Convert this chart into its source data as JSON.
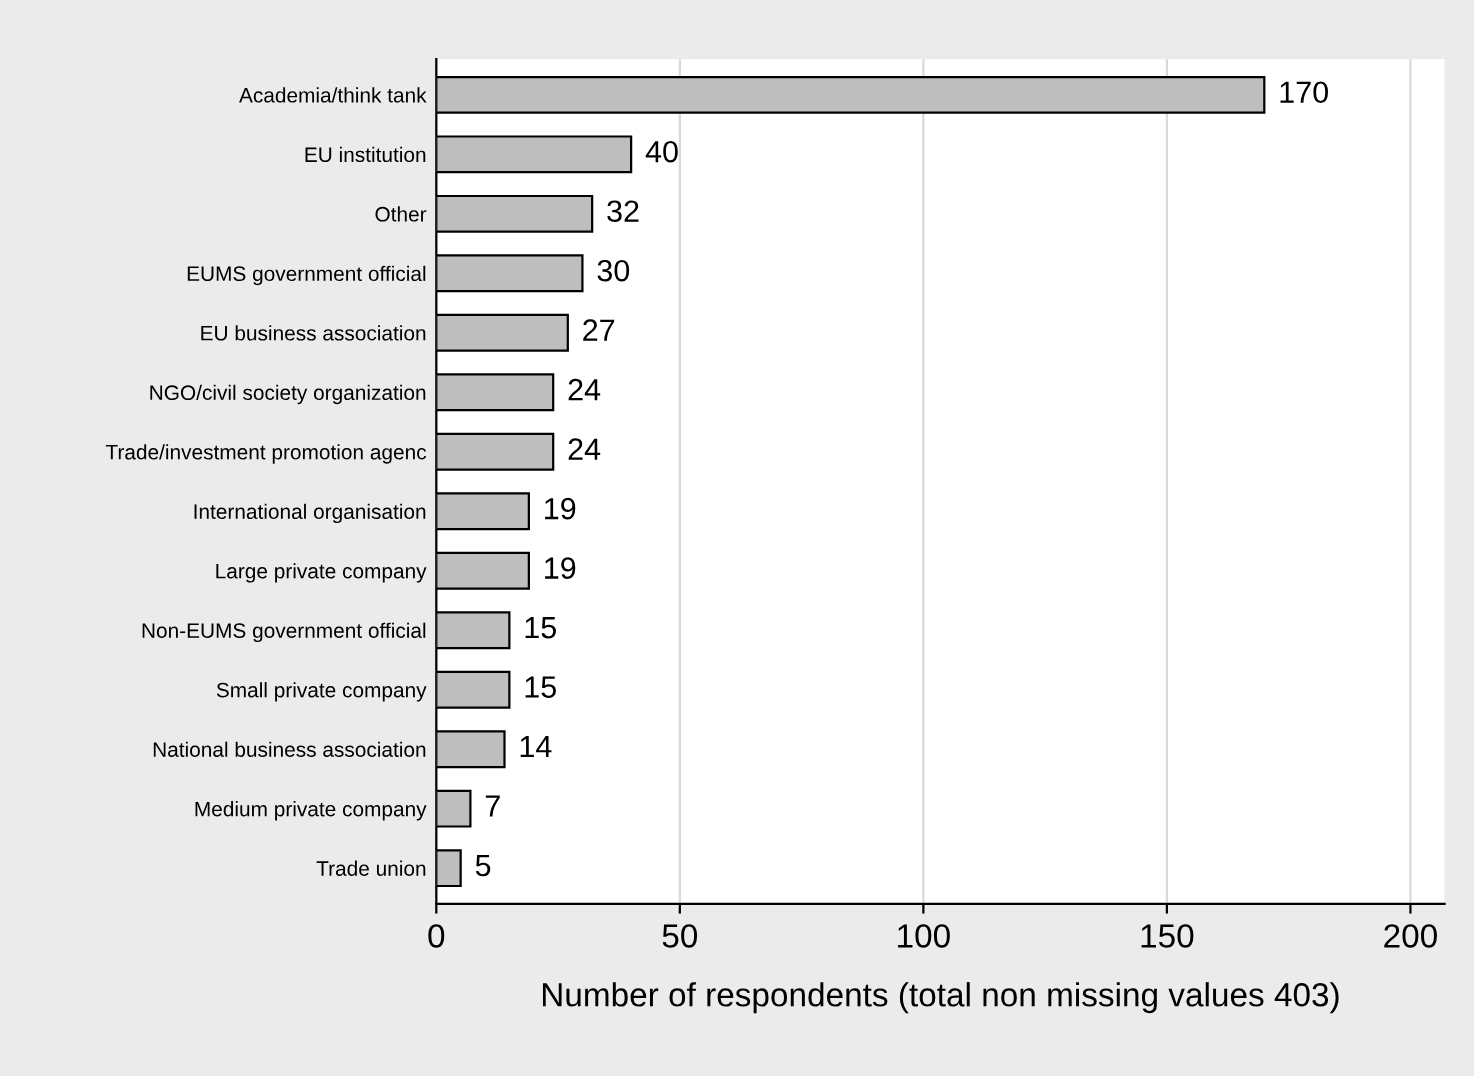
{
  "chart_data": {
    "type": "bar",
    "orientation": "horizontal",
    "xlabel": "Number of respondents (total non missing values 403)",
    "categories": [
      "Academia/think tank",
      "EU institution",
      "Other",
      "EUMS government official",
      "EU business association",
      "NGO/civil society organization",
      "Trade/investment promotion agenc",
      "International organisation",
      "Large private company",
      "Non-EUMS government official",
      "Small private company",
      "National business association",
      "Medium private company",
      "Trade union"
    ],
    "values": [
      170,
      40,
      32,
      30,
      27,
      24,
      24,
      19,
      19,
      15,
      15,
      14,
      7,
      5
    ],
    "color": "#bebebe",
    "xlim": [
      0,
      207
    ],
    "xticks": [
      0,
      50,
      100,
      150,
      200
    ],
    "grid": "x",
    "data_labels": true
  }
}
